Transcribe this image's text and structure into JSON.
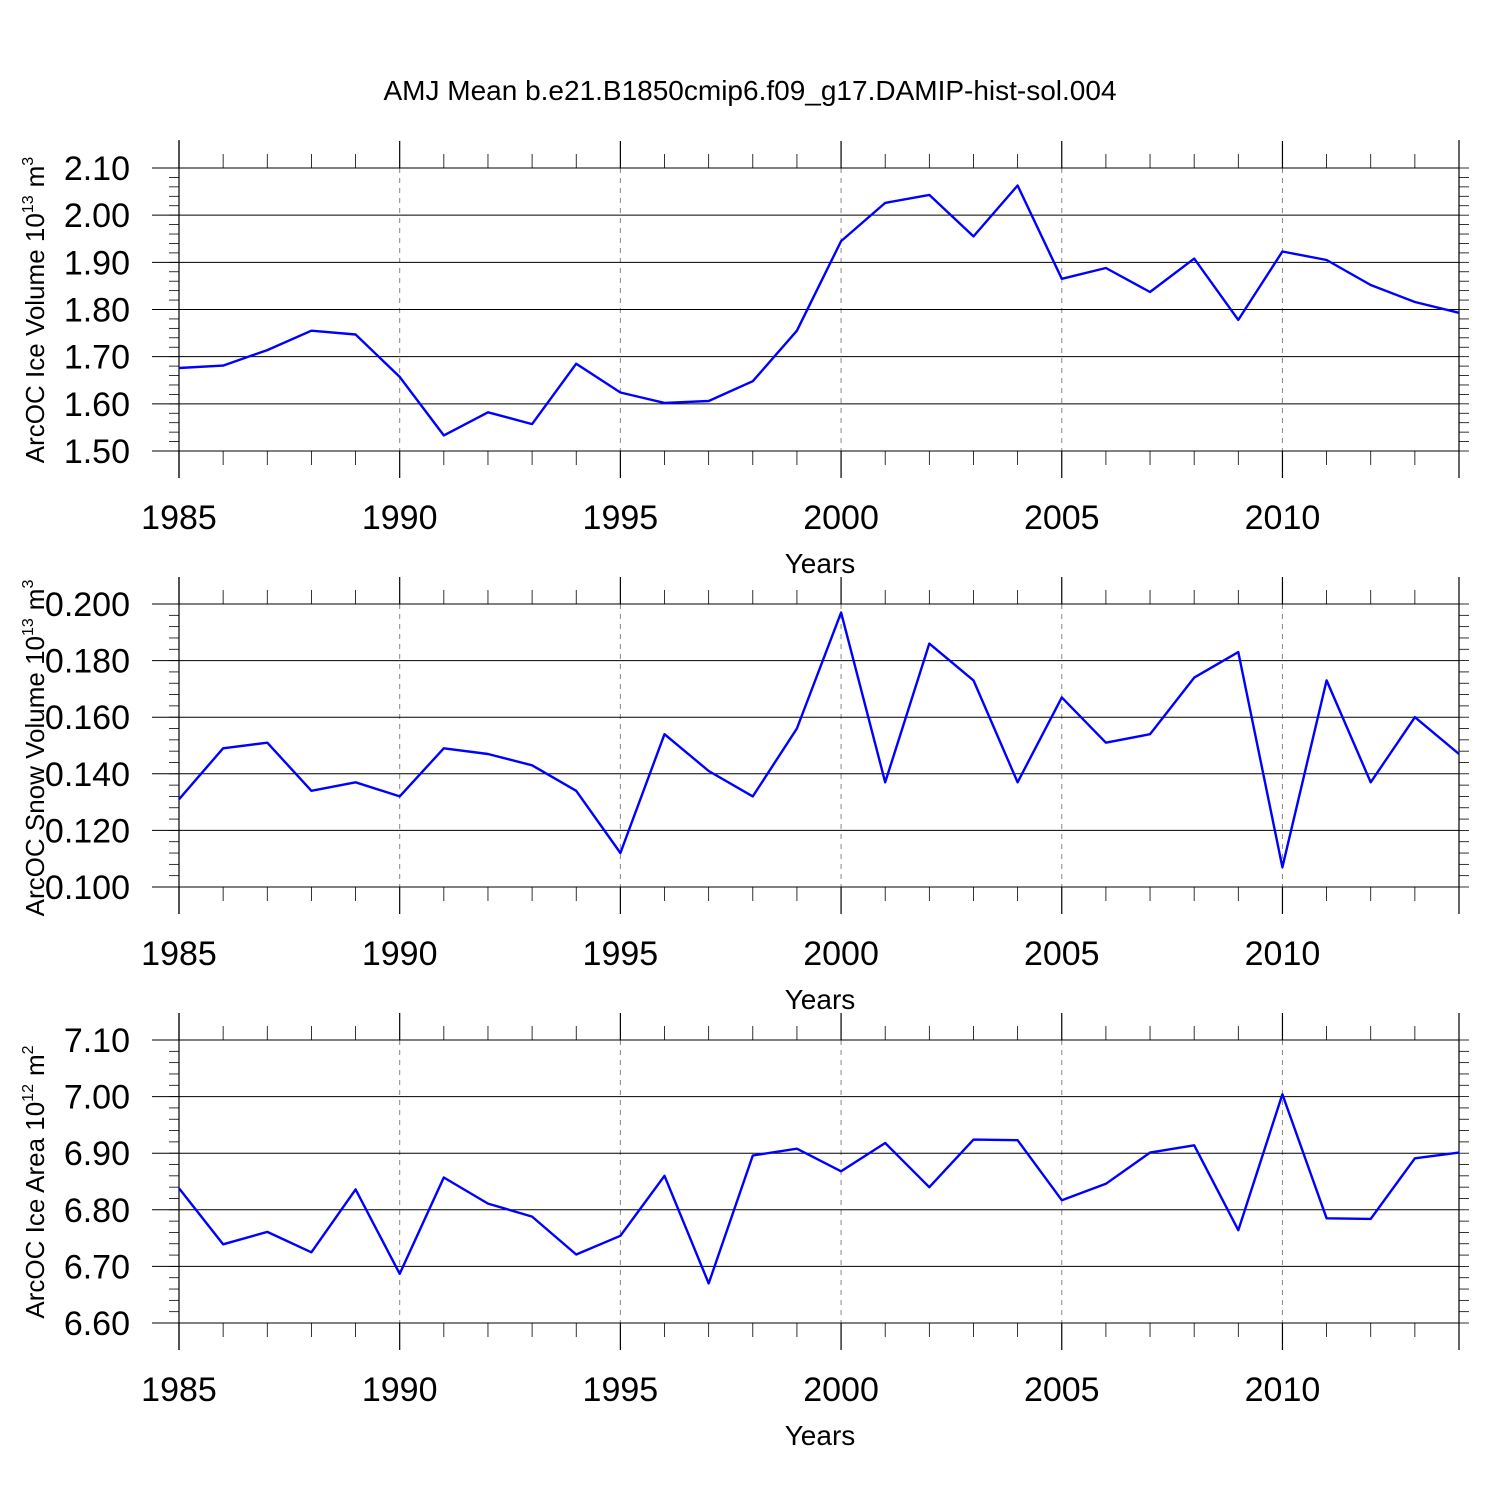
{
  "title": "AMJ Mean b.e21.B1850cmip6.f09_g17.DAMIP-hist-sol.004",
  "colors": {
    "line": "#0000ff",
    "axis": "#000000",
    "grid": "#888888"
  },
  "chart_data": [
    {
      "type": "line",
      "ylabel_main": "ArcOC Ice Volume 10",
      "ylabel_exp": "13",
      "ylabel_unit": "m",
      "ylabel_unit_exp": "3",
      "xlabel": "Years",
      "xlim": [
        1985,
        2014
      ],
      "ylim": [
        1.5,
        2.1
      ],
      "yticks": [
        "1.50",
        "1.60",
        "1.70",
        "1.80",
        "1.90",
        "2.00",
        "2.10"
      ],
      "xticks": [
        "1985",
        "1990",
        "1995",
        "2000",
        "2005",
        "2010"
      ],
      "series": [
        {
          "name": "ArcOC Ice Volume",
          "x": [
            1985,
            1986,
            1987,
            1988,
            1989,
            1990,
            1991,
            1992,
            1993,
            1994,
            1995,
            1996,
            1997,
            1998,
            1999,
            2000,
            2001,
            2002,
            2003,
            2004,
            2005,
            2006,
            2007,
            2008,
            2009,
            2010,
            2011,
            2012,
            2013,
            2014
          ],
          "values": [
            1.676,
            1.681,
            1.714,
            1.755,
            1.747,
            1.657,
            1.533,
            1.582,
            1.557,
            1.685,
            1.624,
            1.602,
            1.606,
            1.648,
            1.755,
            1.945,
            2.026,
            2.043,
            1.955,
            2.063,
            1.865,
            1.888,
            1.837,
            1.908,
            1.778,
            1.923,
            1.905,
            1.852,
            1.816,
            1.793
          ]
        }
      ]
    },
    {
      "type": "line",
      "ylabel_main": "ArcOC Snow Volume 10",
      "ylabel_exp": "13",
      "ylabel_unit": "m",
      "ylabel_unit_exp": "3",
      "xlabel": "Years",
      "xlim": [
        1985,
        2014
      ],
      "ylim": [
        0.1,
        0.2
      ],
      "yticks": [
        "0.100",
        "0.120",
        "0.140",
        "0.160",
        "0.180",
        "0.200"
      ],
      "xticks": [
        "1985",
        "1990",
        "1995",
        "2000",
        "2005",
        "2010"
      ],
      "series": [
        {
          "name": "ArcOC Snow Volume",
          "x": [
            1985,
            1986,
            1987,
            1988,
            1989,
            1990,
            1991,
            1992,
            1993,
            1994,
            1995,
            1996,
            1997,
            1998,
            1999,
            2000,
            2001,
            2002,
            2003,
            2004,
            2005,
            2006,
            2007,
            2008,
            2009,
            2010,
            2011,
            2012,
            2013,
            2014
          ],
          "values": [
            0.131,
            0.149,
            0.151,
            0.134,
            0.137,
            0.132,
            0.149,
            0.147,
            0.143,
            0.134,
            0.112,
            0.154,
            0.141,
            0.132,
            0.156,
            0.197,
            0.137,
            0.186,
            0.173,
            0.137,
            0.167,
            0.151,
            0.154,
            0.174,
            0.183,
            0.107,
            0.173,
            0.137,
            0.16,
            0.147
          ]
        }
      ]
    },
    {
      "type": "line",
      "ylabel_main": "ArcOC Ice Area 10",
      "ylabel_exp": "12",
      "ylabel_unit": "m",
      "ylabel_unit_exp": "2",
      "xlabel": "Years",
      "xlim": [
        1985,
        2014
      ],
      "ylim": [
        6.6,
        7.1
      ],
      "yticks": [
        "6.60",
        "6.70",
        "6.80",
        "6.90",
        "7.00",
        "7.10"
      ],
      "xticks": [
        "1985",
        "1990",
        "1995",
        "2000",
        "2005",
        "2010"
      ],
      "series": [
        {
          "name": "ArcOC Ice Area",
          "x": [
            1985,
            1986,
            1987,
            1988,
            1989,
            1990,
            1991,
            1992,
            1993,
            1994,
            1995,
            1996,
            1997,
            1998,
            1999,
            2000,
            2001,
            2002,
            2003,
            2004,
            2005,
            2006,
            2007,
            2008,
            2009,
            2010,
            2011,
            2012,
            2013,
            2014
          ],
          "values": [
            6.838,
            6.739,
            6.761,
            6.725,
            6.836,
            6.687,
            6.857,
            6.811,
            6.788,
            6.721,
            6.754,
            6.86,
            6.67,
            6.896,
            6.908,
            6.868,
            6.918,
            6.84,
            6.924,
            6.923,
            6.817,
            6.846,
            6.901,
            6.914,
            6.764,
            7.004,
            6.785,
            6.784,
            6.891,
            6.901
          ]
        }
      ]
    }
  ]
}
